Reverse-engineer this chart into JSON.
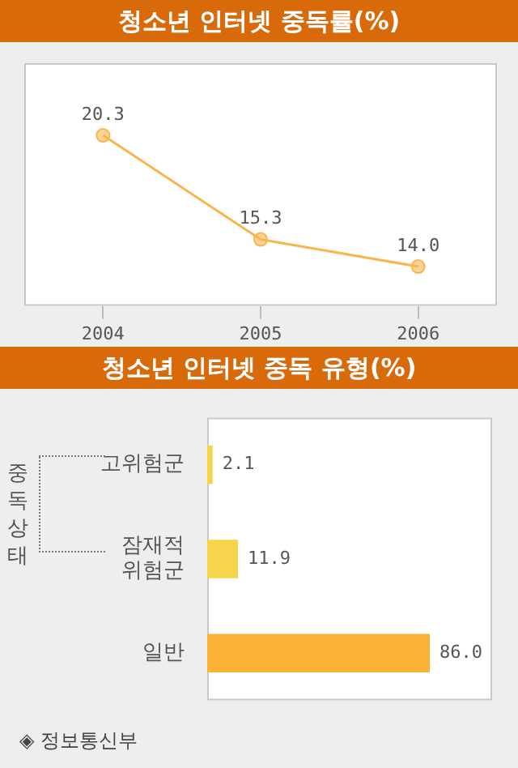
{
  "chart_data": [
    {
      "type": "line",
      "title": "청소년 인터넷 중독률(%)",
      "categories": [
        "2004",
        "2005",
        "2006"
      ],
      "series": [
        {
          "color": "#f8b64c",
          "values": [
            20.3,
            15.3,
            14.0
          ],
          "value_labels": [
            "20.3",
            "15.3",
            "14.0"
          ]
        }
      ],
      "marker": "circle",
      "grid": false,
      "tick_labels": "x"
    },
    {
      "type": "bar",
      "orientation": "horizontal",
      "title": "청소년 인터넷 중독 유형(%)",
      "ylabel": "중독상태",
      "categories": [
        "고위험군",
        "잠재적 위험군",
        "일반"
      ],
      "values": [
        2.1,
        11.9,
        86.0
      ],
      "colors": [
        "#f5d54a",
        "#f5d54a",
        "#f9b233"
      ],
      "value_labels": [
        "2.1",
        "11.9",
        "86.0"
      ],
      "tick_labels": "y",
      "annotations": [
        "◈ 정보통신부"
      ]
    }
  ]
}
